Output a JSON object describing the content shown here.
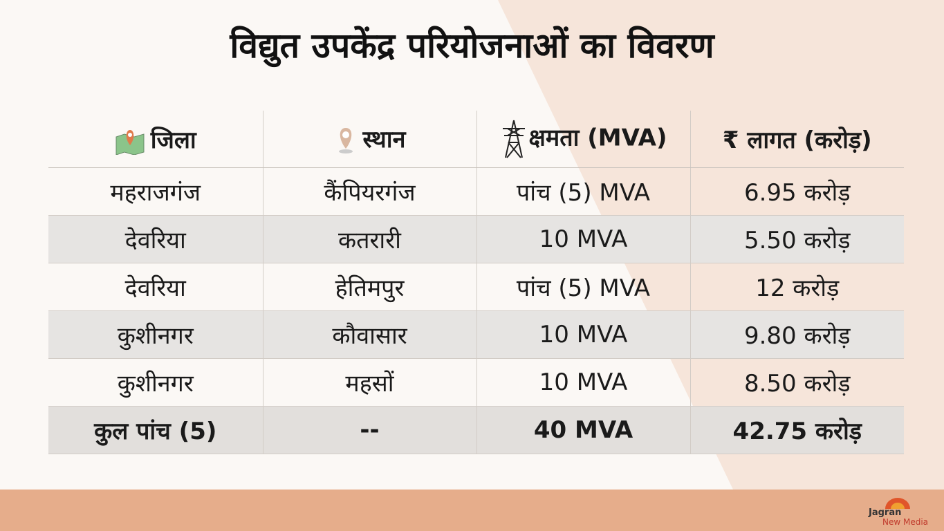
{
  "header": {
    "title": "विद्युत उपकेंद्र परियोजनाओं का विवरण"
  },
  "table": {
    "headers": [
      "जिला",
      "स्थान",
      "क्षमता (MVA)",
      "₹  लागत (करोड़)"
    ],
    "rows": [
      [
        "महराजगंज",
        "कैंपियरगंज",
        "पांच (5) MVA",
        "6.95 करोड़"
      ],
      [
        "देवरिया",
        "कतरारी",
        "10 MVA",
        "5.50 करोड़"
      ],
      [
        "देवरिया",
        "हेतिमपुर",
        "पांच (5) MVA",
        "12 करोड़"
      ],
      [
        "कुशीनगर",
        "कौवासार",
        "10 MVA",
        "9.80 करोड़"
      ],
      [
        "कुशीनगर",
        "महसों",
        "10 MVA",
        "8.50 करोड़"
      ]
    ],
    "total": [
      "कुल पांच (5)",
      "--",
      "40 MVA",
      "42.75 करोड़"
    ]
  },
  "logo": {
    "name": "Jagran",
    "subtitle": "New Media"
  }
}
